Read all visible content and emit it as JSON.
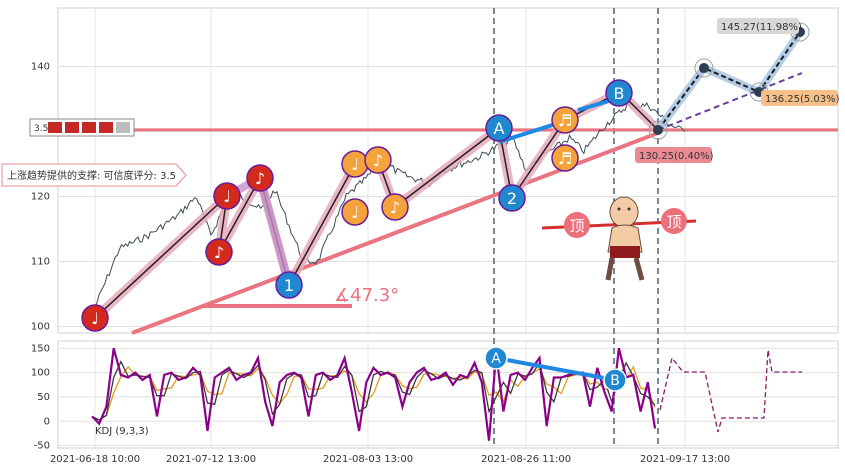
{
  "chart_data": [
    {
      "type": "line",
      "panel": "price",
      "ylim": [
        99,
        149
      ],
      "y_ticks": [
        100,
        110,
        120,
        130,
        140
      ],
      "y_tick_labels": [
        "100",
        "110",
        "120",
        "",
        "140"
      ],
      "grid": true,
      "x": [
        "2021-06-18 10:00",
        "2021-07-12 13:00",
        "2021-08-03 13:00",
        "2021-08-26 11:00",
        "2021-09-17 13:00"
      ],
      "price_path": [
        {
          "x": "2021-06-18 10:00",
          "y": 103
        },
        {
          "x": "2021-06-23",
          "y": 112
        },
        {
          "x": "2021-06-29",
          "y": 114
        },
        {
          "x": "2021-07-05",
          "y": 117
        },
        {
          "x": "2021-07-09",
          "y": 120
        },
        {
          "x": "2021-07-12",
          "y": 114
        },
        {
          "x": "2021-07-15",
          "y": 121
        },
        {
          "x": "2021-07-19",
          "y": 118
        },
        {
          "x": "2021-07-21",
          "y": 121
        },
        {
          "x": "2021-07-25",
          "y": 110
        },
        {
          "x": "2021-07-27",
          "y": 110
        },
        {
          "x": "2021-07-31",
          "y": 120
        },
        {
          "x": "2021-08-03",
          "y": 123
        },
        {
          "x": "2021-08-05",
          "y": 126
        },
        {
          "x": "2021-08-07",
          "y": 124
        },
        {
          "x": "2021-08-09",
          "y": 123
        },
        {
          "x": "2021-08-12",
          "y": 122
        },
        {
          "x": "2021-08-14",
          "y": 124
        },
        {
          "x": "2021-08-19",
          "y": 126
        },
        {
          "x": "2021-08-24",
          "y": 129
        },
        {
          "x": "2021-08-26",
          "y": 124
        },
        {
          "x": "2021-08-28",
          "y": 126
        },
        {
          "x": "2021-09-01",
          "y": 129
        },
        {
          "x": "2021-09-03",
          "y": 127
        },
        {
          "x": "2021-09-06",
          "y": 131
        },
        {
          "x": "2021-09-09",
          "y": 134
        },
        {
          "x": "2021-09-12",
          "y": 134
        },
        {
          "x": "2021-09-15",
          "y": 131
        },
        {
          "x": "2021-09-17 13:00",
          "y": 130
        }
      ],
      "horizontal_line": {
        "y": 130.25
      },
      "price_labels": [
        {
          "text": "145.27(11.98%)",
          "y": 145.27
        },
        {
          "text": "136.25(5.03%)",
          "y": 136.25
        },
        {
          "text": "130.25(0.40%)",
          "y": 130.25
        }
      ],
      "support_label": "上涨趋势提供的支撑: 可信度评分: 3.5",
      "left_badge": "3.5",
      "angle_label": "∡47.3°",
      "top_label": "顶",
      "markers": [
        {
          "label": "♩",
          "color": "#d42a1e",
          "x": "2021-06-18 10:00",
          "y": 102
        },
        {
          "label": "♩",
          "color": "#d42a1e",
          "x": "2021-07-09",
          "y": 120
        },
        {
          "label": "♪",
          "color": "#d42a1e",
          "x": "2021-07-12",
          "y": 114
        },
        {
          "label": "♪",
          "color": "#d42a1e",
          "x": "2021-07-15",
          "y": 122
        },
        {
          "label": "1",
          "color": "#1f88d0",
          "x": "2021-07-25",
          "y": 108
        },
        {
          "label": "♩",
          "color": "#f4a23a",
          "x": "2021-08-05",
          "y": 126
        },
        {
          "label": "♪",
          "color": "#f4a23a",
          "x": "2021-08-07",
          "y": 126
        },
        {
          "label": "♩",
          "color": "#f4a23a",
          "x": "2021-08-05",
          "y": 121
        },
        {
          "label": "♪",
          "color": "#f4a23a",
          "x": "2021-08-12",
          "y": 122
        },
        {
          "label": "A",
          "color": "#1f88d0",
          "x": "2021-08-26",
          "y": 130
        },
        {
          "label": "2",
          "color": "#1f88d0",
          "x": "2021-08-28",
          "y": 120
        },
        {
          "label": "♬",
          "color": "#f4a23a",
          "x": "2021-09-03",
          "y": 131
        },
        {
          "label": "♬",
          "color": "#f4a23a",
          "x": "2021-09-03",
          "y": 126
        },
        {
          "label": "B",
          "color": "#1f88d0",
          "x": "2021-09-09",
          "y": 134
        }
      ]
    },
    {
      "type": "line",
      "panel": "indicator",
      "ylim": [
        -55,
        165
      ],
      "y_ticks": [
        -50,
        0,
        50,
        100,
        150
      ],
      "y_tick_labels": [
        "-50",
        "0",
        "50",
        "100",
        "150"
      ],
      "legend": "KDJ (9,3,3)",
      "markers": [
        {
          "label": "A",
          "color": "#1f88d0"
        },
        {
          "label": "B",
          "color": "#1f88d0"
        }
      ],
      "series": [
        {
          "color": "#8b008b",
          "values": [
            10,
            -5,
            30,
            150,
            95,
            90,
            100,
            85,
            95,
            10,
            95,
            100,
            85,
            90,
            110,
            95,
            -20,
            90,
            100,
            110,
            85,
            95,
            100,
            130,
            40,
            -10,
            80,
            95,
            100,
            90,
            10,
            95,
            100,
            85,
            95,
            130,
            60,
            -20,
            80,
            110,
            95,
            100,
            90,
            30,
            80,
            100,
            110,
            85,
            90,
            100,
            75,
            95,
            90,
            120,
            80,
            -40,
            140,
            20,
            95,
            100,
            85,
            110,
            130,
            -10,
            90,
            90,
            95,
            100,
            100,
            30,
            110,
            60,
            20,
            150,
            90,
            95,
            20,
            80,
            -15
          ]
        }
      ]
    }
  ]
}
